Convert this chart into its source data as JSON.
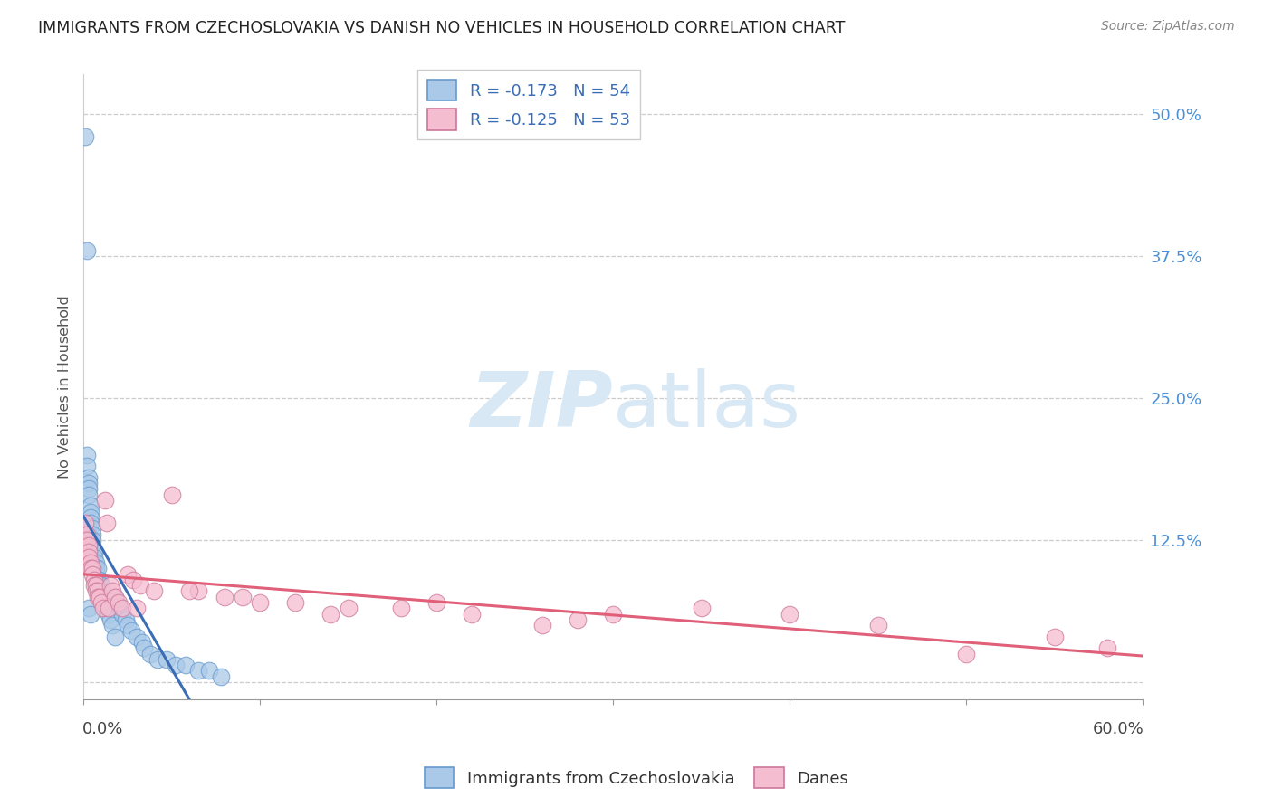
{
  "title": "IMMIGRANTS FROM CZECHOSLOVAKIA VS DANISH NO VEHICLES IN HOUSEHOLD CORRELATION CHART",
  "source": "Source: ZipAtlas.com",
  "ylabel": "No Vehicles in Household",
  "xlim": [
    0.0,
    0.6
  ],
  "ylim": [
    -0.015,
    0.535
  ],
  "legend_r1": "R = -0.173   N = 54",
  "legend_r2": "R = -0.125   N = 53",
  "legend_color1": "#aac9e8",
  "legend_color2": "#f5bdd0",
  "scatter_color1": "#aac9e8",
  "scatter_color2": "#f5bdd0",
  "line_color1": "#3a6db5",
  "line_color2": "#e0607a",
  "watermark": "ZIPatlas",
  "blue_x": [
    0.001,
    0.002,
    0.002,
    0.002,
    0.003,
    0.003,
    0.003,
    0.003,
    0.003,
    0.004,
    0.004,
    0.004,
    0.004,
    0.005,
    0.005,
    0.005,
    0.005,
    0.006,
    0.006,
    0.007,
    0.007,
    0.008,
    0.008,
    0.009,
    0.009,
    0.01,
    0.01,
    0.011,
    0.012,
    0.013,
    0.014,
    0.015,
    0.016,
    0.018,
    0.018,
    0.019,
    0.021,
    0.022,
    0.024,
    0.025,
    0.027,
    0.03,
    0.033,
    0.034,
    0.038,
    0.042,
    0.047,
    0.052,
    0.058,
    0.065,
    0.071,
    0.078,
    0.003,
    0.004
  ],
  "blue_y": [
    0.48,
    0.38,
    0.2,
    0.19,
    0.18,
    0.175,
    0.17,
    0.165,
    0.13,
    0.155,
    0.15,
    0.145,
    0.14,
    0.135,
    0.13,
    0.125,
    0.12,
    0.115,
    0.11,
    0.105,
    0.1,
    0.1,
    0.09,
    0.09,
    0.085,
    0.085,
    0.08,
    0.075,
    0.07,
    0.065,
    0.06,
    0.055,
    0.05,
    0.075,
    0.04,
    0.07,
    0.065,
    0.06,
    0.055,
    0.05,
    0.045,
    0.04,
    0.035,
    0.03,
    0.025,
    0.02,
    0.02,
    0.015,
    0.015,
    0.01,
    0.01,
    0.005,
    0.065,
    0.06
  ],
  "pink_x": [
    0.001,
    0.002,
    0.002,
    0.003,
    0.003,
    0.003,
    0.004,
    0.004,
    0.005,
    0.005,
    0.006,
    0.006,
    0.007,
    0.007,
    0.008,
    0.008,
    0.009,
    0.01,
    0.011,
    0.012,
    0.013,
    0.014,
    0.015,
    0.016,
    0.018,
    0.02,
    0.022,
    0.025,
    0.028,
    0.032,
    0.04,
    0.05,
    0.065,
    0.08,
    0.1,
    0.12,
    0.15,
    0.18,
    0.22,
    0.26,
    0.3,
    0.35,
    0.4,
    0.45,
    0.5,
    0.55,
    0.58,
    0.03,
    0.06,
    0.09,
    0.14,
    0.2,
    0.28
  ],
  "pink_y": [
    0.14,
    0.13,
    0.125,
    0.12,
    0.115,
    0.11,
    0.105,
    0.1,
    0.1,
    0.095,
    0.09,
    0.085,
    0.085,
    0.08,
    0.08,
    0.075,
    0.075,
    0.07,
    0.065,
    0.16,
    0.14,
    0.065,
    0.085,
    0.08,
    0.075,
    0.07,
    0.065,
    0.095,
    0.09,
    0.085,
    0.08,
    0.165,
    0.08,
    0.075,
    0.07,
    0.07,
    0.065,
    0.065,
    0.06,
    0.05,
    0.06,
    0.065,
    0.06,
    0.05,
    0.025,
    0.04,
    0.03,
    0.065,
    0.08,
    0.075,
    0.06,
    0.07,
    0.055
  ]
}
